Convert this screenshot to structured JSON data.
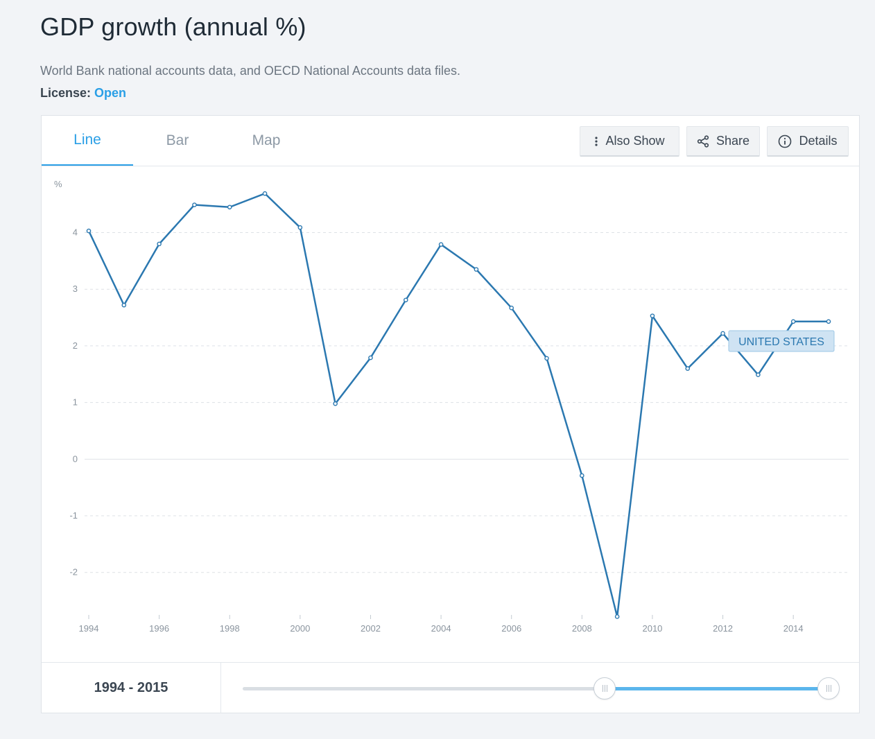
{
  "page": {
    "title": "GDP growth (annual %)",
    "source": "World Bank national accounts data, and OECD National Accounts data files.",
    "license_label": "License:",
    "license_value": "Open"
  },
  "tabs": [
    {
      "label": "Line",
      "active": true
    },
    {
      "label": "Bar",
      "active": false
    },
    {
      "label": "Map",
      "active": false
    }
  ],
  "actions": {
    "also_show": {
      "label": "Also Show",
      "icon": "more-vertical-icon"
    },
    "share": {
      "label": "Share",
      "icon": "share-icon"
    },
    "details": {
      "label": "Details",
      "icon": "info-icon"
    }
  },
  "range": {
    "start": "1994",
    "sep": " - ",
    "end": "2015"
  },
  "slider": {
    "min_year": 1960,
    "max_year": 2015,
    "from_year": 1994,
    "to_year": 2015
  },
  "colors": {
    "accent": "#2a9fe6",
    "series": "#2b78b0",
    "slider_fill": "#5bb6ec"
  },
  "chart_data": {
    "type": "line",
    "ylabel": "%",
    "ylim": [
      -2.75,
      4.9
    ],
    "yticks": [
      -2,
      -1,
      0,
      1,
      2,
      3,
      4
    ],
    "xticks": [
      1994,
      1996,
      1998,
      2000,
      2002,
      2004,
      2006,
      2008,
      2010,
      2012,
      2014
    ],
    "xlim": [
      1994,
      2015
    ],
    "grid": true,
    "x": [
      1994,
      1995,
      1996,
      1997,
      1998,
      1999,
      2000,
      2001,
      2002,
      2003,
      2004,
      2005,
      2006,
      2007,
      2008,
      2009,
      2010,
      2011,
      2012,
      2013,
      2014,
      2015
    ],
    "series": [
      {
        "name": "UNITED STATES",
        "values": [
          4.03,
          2.72,
          3.8,
          4.49,
          4.45,
          4.69,
          4.09,
          0.98,
          1.79,
          2.81,
          3.79,
          3.35,
          2.67,
          1.78,
          -0.29,
          -2.78,
          2.53,
          1.6,
          2.22,
          1.49,
          2.43,
          2.43
        ]
      }
    ]
  }
}
